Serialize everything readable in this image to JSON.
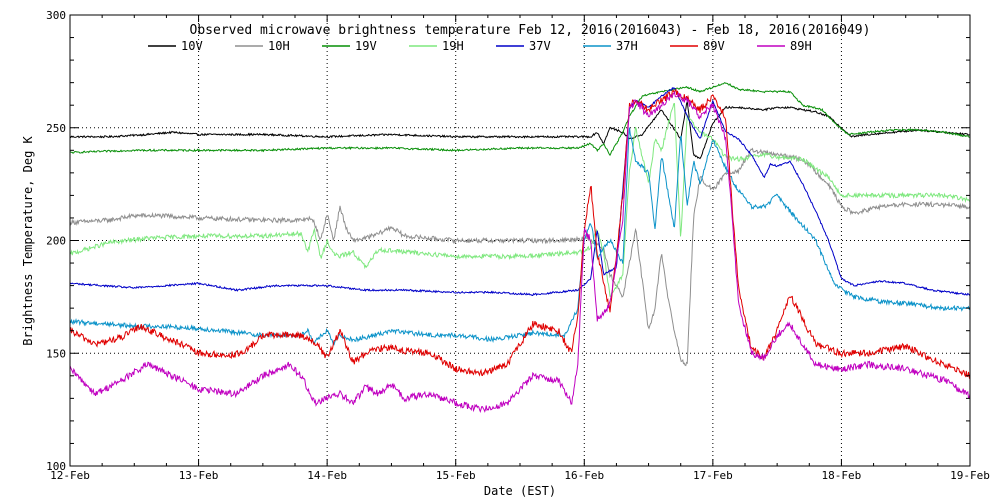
{
  "chart_data": {
    "type": "line",
    "title": "Observed microwave brightness temperature Feb 12, 2016(2016043) - Feb 18, 2016(2016049)",
    "xlabel": "Date (EST)",
    "ylabel": "Brightness Temperature, Deg K",
    "x_ticks": [
      {
        "day": 0,
        "label": "12-Feb"
      },
      {
        "day": 1,
        "label": "13-Feb"
      },
      {
        "day": 2,
        "label": "14-Feb"
      },
      {
        "day": 3,
        "label": "15-Feb"
      },
      {
        "day": 4,
        "label": "16-Feb"
      },
      {
        "day": 5,
        "label": "17-Feb"
      },
      {
        "day": 6,
        "label": "18-Feb"
      },
      {
        "day": 7,
        "label": "19-Feb"
      }
    ],
    "xlim": [
      0,
      7
    ],
    "ylim": [
      100,
      300
    ],
    "y_ticks": [
      100,
      150,
      200,
      250,
      300
    ],
    "grid": "dotted at 50 K and daily",
    "legend_position": "top",
    "x_unit": "days since 12-Feb 00:00 EST",
    "series": [
      {
        "name": "10V",
        "color": "#000000",
        "noise": 0.4,
        "x": [
          0,
          0.3,
          0.6,
          0.8,
          1.0,
          1.5,
          2.0,
          2.5,
          3.0,
          3.5,
          3.95,
          4.05,
          4.1,
          4.15,
          4.2,
          4.3,
          4.35,
          4.45,
          4.6,
          4.75,
          4.8,
          4.85,
          4.9,
          5.0,
          5.1,
          5.2,
          5.4,
          5.5,
          5.6,
          5.8,
          5.9,
          6.0,
          6.08,
          6.2,
          6.4,
          6.6,
          6.8,
          7.0
        ],
        "y": [
          246,
          246,
          247,
          248,
          247,
          247,
          246,
          247,
          246,
          246,
          246,
          246,
          248,
          243,
          250,
          248,
          245,
          247,
          258,
          245,
          262,
          238,
          236,
          252,
          259,
          259,
          258,
          259,
          259,
          257,
          255,
          250,
          246,
          247,
          248,
          249,
          248,
          247
        ]
      },
      {
        "name": "10H",
        "color": "#8f8f8f",
        "noise": 1.0,
        "x": [
          0,
          0.3,
          0.5,
          0.7,
          1.0,
          1.5,
          1.8,
          1.85,
          1.9,
          1.95,
          2.0,
          2.05,
          2.1,
          2.15,
          2.2,
          2.3,
          2.4,
          2.5,
          2.6,
          2.8,
          3.0,
          3.2,
          3.5,
          3.8,
          4.0,
          4.1,
          4.15,
          4.2,
          4.3,
          4.35,
          4.4,
          4.5,
          4.55,
          4.6,
          4.65,
          4.7,
          4.75,
          4.8,
          4.85,
          4.9,
          5.0,
          5.1,
          5.2,
          5.3,
          5.5,
          5.7,
          5.9,
          6.0,
          6.1,
          6.3,
          6.5,
          6.7,
          7.0
        ],
        "y": [
          208,
          209,
          211,
          211,
          210,
          209,
          209,
          210,
          208,
          200,
          212,
          200,
          215,
          205,
          200,
          201,
          203,
          206,
          202,
          201,
          200,
          200,
          200,
          200,
          201,
          199,
          196,
          185,
          175,
          190,
          205,
          160,
          170,
          195,
          175,
          160,
          147,
          145,
          210,
          228,
          222,
          230,
          231,
          240,
          238,
          236,
          225,
          215,
          212,
          215,
          216,
          216,
          215
        ]
      },
      {
        "name": "19V",
        "color": "#078f07",
        "noise": 0.4,
        "x": [
          0,
          0.5,
          1.0,
          1.5,
          2.0,
          2.5,
          3.0,
          3.5,
          3.95,
          4.05,
          4.1,
          4.15,
          4.2,
          4.3,
          4.35,
          4.45,
          4.6,
          4.8,
          4.9,
          5.0,
          5.1,
          5.2,
          5.4,
          5.5,
          5.6,
          5.7,
          5.85,
          5.95,
          6.05,
          6.2,
          6.4,
          6.6,
          6.8,
          7.0
        ],
        "y": [
          239,
          240,
          240,
          240,
          241,
          241,
          240,
          241,
          241,
          243,
          240,
          243,
          238,
          248,
          255,
          264,
          266,
          268,
          266,
          268,
          270,
          267,
          266,
          266,
          266,
          260,
          258,
          252,
          247,
          248,
          249,
          249,
          248,
          246
        ]
      },
      {
        "name": "19H",
        "color": "#7fe87f",
        "noise": 1.0,
        "x": [
          0,
          0.3,
          0.6,
          1.0,
          1.5,
          1.8,
          1.85,
          1.9,
          1.95,
          2.0,
          2.05,
          2.1,
          2.2,
          2.3,
          2.4,
          2.6,
          2.8,
          3.0,
          3.2,
          3.5,
          3.8,
          4.0,
          4.05,
          4.1,
          4.15,
          4.2,
          4.3,
          4.35,
          4.4,
          4.5,
          4.55,
          4.6,
          4.7,
          4.75,
          4.8,
          4.9,
          5.0,
          5.1,
          5.2,
          5.4,
          5.5,
          5.7,
          5.9,
          6.0,
          6.2,
          6.5,
          6.8,
          7.0
        ],
        "y": [
          194,
          199,
          201,
          202,
          202,
          203,
          195,
          205,
          192,
          200,
          194,
          193,
          195,
          188,
          196,
          195,
          194,
          193,
          193,
          193,
          194,
          195,
          197,
          205,
          195,
          175,
          185,
          230,
          250,
          225,
          245,
          240,
          262,
          200,
          255,
          248,
          245,
          237,
          236,
          238,
          237,
          236,
          228,
          220,
          220,
          220,
          220,
          218
        ]
      },
      {
        "name": "37V",
        "color": "#0000c8",
        "noise": 0.4,
        "x": [
          0,
          0.5,
          1.0,
          1.3,
          1.6,
          2.0,
          2.3,
          2.6,
          3.0,
          3.3,
          3.6,
          3.95,
          4.05,
          4.1,
          4.15,
          4.25,
          4.35,
          4.4,
          4.5,
          4.6,
          4.7,
          4.8,
          4.9,
          5.0,
          5.1,
          5.2,
          5.3,
          5.4,
          5.45,
          5.5,
          5.6,
          5.7,
          5.8,
          5.9,
          6.0,
          6.1,
          6.3,
          6.5,
          6.7,
          7.0
        ],
        "y": [
          181,
          179,
          181,
          178,
          180,
          180,
          178,
          178,
          177,
          177,
          176,
          178,
          183,
          205,
          185,
          188,
          258,
          262,
          259,
          264,
          268,
          255,
          245,
          262,
          248,
          245,
          238,
          228,
          234,
          233,
          235,
          225,
          213,
          200,
          183,
          180,
          182,
          181,
          178,
          176
        ]
      },
      {
        "name": "37H",
        "color": "#0c93c9",
        "noise": 1.0,
        "x": [
          0,
          0.3,
          0.5,
          0.7,
          1.0,
          1.5,
          1.8,
          1.85,
          1.9,
          2.0,
          2.05,
          2.1,
          2.2,
          2.3,
          2.5,
          2.8,
          3.0,
          3.3,
          3.6,
          3.85,
          3.95,
          4.0,
          4.05,
          4.1,
          4.2,
          4.3,
          4.35,
          4.4,
          4.5,
          4.55,
          4.6,
          4.7,
          4.75,
          4.8,
          4.85,
          4.9,
          5.0,
          5.1,
          5.2,
          5.3,
          5.4,
          5.5,
          5.6,
          5.8,
          5.95,
          6.1,
          6.3,
          6.5,
          6.8,
          7.0
        ],
        "y": [
          164,
          163,
          162,
          162,
          161,
          158,
          158,
          160,
          155,
          160,
          154,
          158,
          156,
          157,
          160,
          158,
          158,
          156,
          159,
          158,
          170,
          200,
          208,
          193,
          200,
          190,
          250,
          235,
          230,
          205,
          238,
          205,
          248,
          215,
          235,
          225,
          245,
          232,
          222,
          215,
          215,
          220,
          213,
          200,
          180,
          175,
          173,
          172,
          170,
          170
        ]
      },
      {
        "name": "89V",
        "color": "#e00000",
        "noise": 1.5,
        "x": [
          0,
          0.2,
          0.4,
          0.55,
          0.7,
          0.9,
          1.0,
          1.2,
          1.35,
          1.5,
          1.7,
          1.8,
          1.9,
          2.0,
          2.1,
          2.2,
          2.3,
          2.4,
          2.5,
          2.6,
          2.8,
          3.0,
          3.2,
          3.4,
          3.6,
          3.8,
          3.9,
          3.95,
          4.0,
          4.05,
          4.1,
          4.2,
          4.3,
          4.35,
          4.4,
          4.5,
          4.6,
          4.7,
          4.8,
          4.9,
          5.0,
          5.1,
          5.15,
          5.2,
          5.3,
          5.4,
          5.5,
          5.6,
          5.8,
          6.0,
          6.2,
          6.5,
          6.8,
          7.0
        ],
        "y": [
          160,
          154,
          157,
          162,
          158,
          153,
          150,
          149,
          150,
          158,
          158,
          158,
          155,
          148,
          160,
          146,
          150,
          152,
          153,
          151,
          150,
          143,
          141,
          145,
          163,
          160,
          150,
          167,
          205,
          225,
          195,
          168,
          220,
          260,
          262,
          258,
          262,
          266,
          263,
          258,
          264,
          255,
          215,
          178,
          152,
          148,
          160,
          176,
          154,
          150,
          150,
          153,
          145,
          140
        ]
      },
      {
        "name": "89H",
        "color": "#c000c0",
        "noise": 1.5,
        "x": [
          0,
          0.2,
          0.4,
          0.6,
          0.8,
          1.0,
          1.3,
          1.5,
          1.7,
          1.8,
          1.9,
          2.0,
          2.1,
          2.2,
          2.3,
          2.4,
          2.5,
          2.6,
          2.8,
          3.0,
          3.2,
          3.4,
          3.6,
          3.8,
          3.9,
          3.95,
          4.0,
          4.05,
          4.1,
          4.2,
          4.3,
          4.35,
          4.4,
          4.5,
          4.6,
          4.7,
          4.8,
          4.9,
          5.0,
          5.1,
          5.15,
          5.2,
          5.3,
          5.4,
          5.5,
          5.6,
          5.8,
          6.0,
          6.2,
          6.5,
          6.8,
          7.0
        ],
        "y": [
          143,
          132,
          138,
          145,
          140,
          134,
          132,
          140,
          145,
          140,
          128,
          130,
          132,
          128,
          135,
          132,
          136,
          130,
          132,
          128,
          125,
          128,
          140,
          138,
          128,
          145,
          205,
          200,
          165,
          172,
          210,
          258,
          262,
          255,
          260,
          265,
          262,
          255,
          260,
          245,
          210,
          172,
          150,
          148,
          158,
          163,
          145,
          143,
          145,
          143,
          138,
          131
        ]
      }
    ]
  }
}
